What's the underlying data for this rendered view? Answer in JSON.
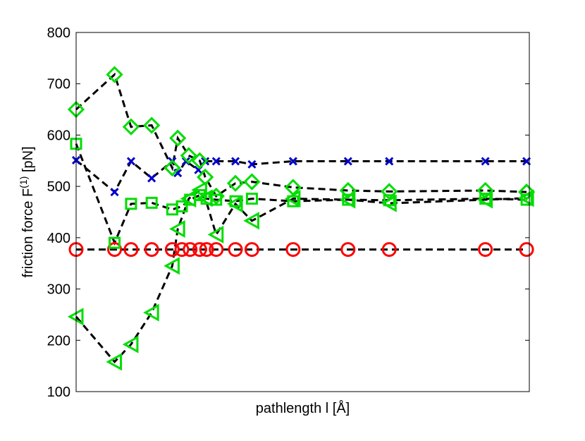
{
  "chart_data": {
    "type": "scatter",
    "title": "",
    "xlabel": "pathlength l [Å]",
    "ylabel": {
      "text": "friction force F",
      "superscript": "(1)",
      "unit": " [pN]"
    },
    "xlim": [
      0,
      33
    ],
    "ylim": [
      100,
      800
    ],
    "yticks": [
      100,
      200,
      300,
      400,
      500,
      600,
      700,
      800
    ],
    "grid": false,
    "legend": null,
    "series": [
      {
        "marker": "circle",
        "color": "#ff0000",
        "line": "dashed",
        "x": [
          0,
          2.8,
          4,
          5.5,
          7,
          7.7,
          8.3,
          9,
          9.5,
          10.2,
          11.6,
          12.8,
          15.8,
          19.8,
          22.8,
          29.8,
          32.8
        ],
        "y": [
          377,
          377,
          377,
          377,
          377,
          377,
          377,
          377,
          377,
          377,
          377,
          377,
          377,
          377,
          377,
          377,
          377
        ]
      },
      {
        "marker": "x",
        "color": "#0000cc",
        "line": "dashed",
        "x": [
          0,
          2.8,
          4,
          5.5,
          7,
          7.4,
          8,
          8.9,
          9.4,
          10.2,
          11.6,
          12.8,
          15.8,
          19.8,
          22.8,
          29.8,
          32.8
        ],
        "y": [
          551,
          489,
          549,
          516,
          549,
          526,
          549,
          532,
          549,
          549,
          549,
          543,
          549,
          549,
          549,
          549,
          549
        ]
      },
      {
        "marker": "diamond",
        "color": "#00dd00",
        "line": "dashed",
        "x": [
          0,
          2.8,
          4,
          5.5,
          7,
          7.4,
          8.2,
          9,
          9.4,
          10.2,
          11.6,
          12.8,
          15.8,
          19.8,
          22.8,
          29.8,
          32.8
        ],
        "y": [
          650,
          718,
          616,
          619,
          536,
          594,
          560,
          550,
          518,
          481,
          506,
          509,
          498,
          492,
          490,
          492,
          489
        ]
      },
      {
        "marker": "square",
        "color": "#00dd00",
        "line": "dashed",
        "x": [
          0,
          2.8,
          4,
          5.5,
          7,
          7.7,
          8.3,
          9,
          9.5,
          10.2,
          11.6,
          12.8,
          15.8,
          19.8,
          22.8,
          29.8,
          32.8
        ],
        "y": [
          583,
          390,
          466,
          468,
          455,
          461,
          474,
          483,
          476,
          474,
          471,
          476,
          471,
          474,
          473,
          476,
          474
        ]
      },
      {
        "marker": "triangle-left",
        "color": "#00dd00",
        "line": "dashed",
        "x": [
          0,
          2.8,
          4,
          5.5,
          7,
          7.4,
          8.2,
          9,
          9.4,
          10.2,
          11.6,
          12.8,
          15.8,
          19.8,
          22.8,
          29.8,
          32.8
        ],
        "y": [
          246,
          158,
          192,
          254,
          345,
          417,
          476,
          493,
          477,
          406,
          466,
          433,
          476,
          474,
          467,
          474,
          477
        ]
      }
    ]
  }
}
